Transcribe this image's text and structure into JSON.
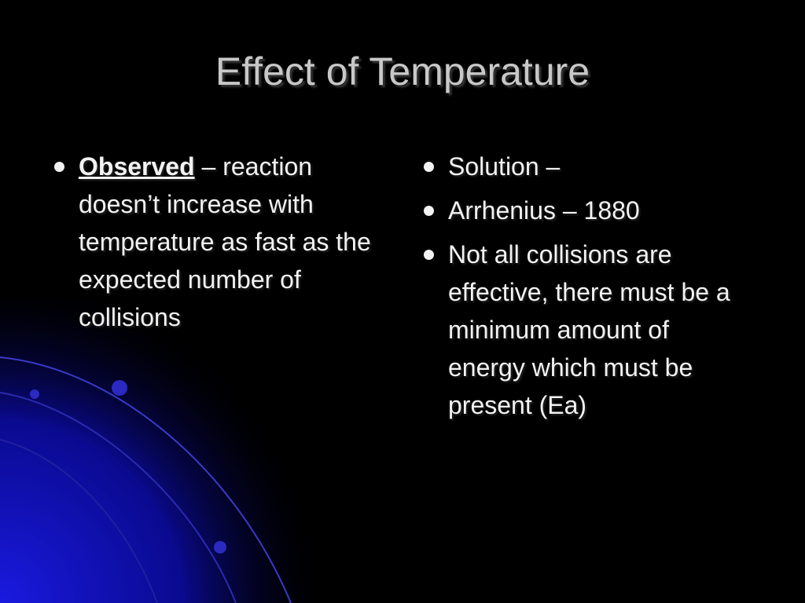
{
  "title": "Effect of Temperature",
  "left_column": {
    "bullets": [
      {
        "term": "Observed",
        "text": "– reaction doesn’t increase with temperature as fast as the expected number of collisions"
      }
    ]
  },
  "right_column": {
    "bullets": [
      "Solution –",
      "Arrhenius – 1880",
      "Not all collisions are effective, there must be a minimum amount of energy which must be present (Ea)"
    ]
  }
}
